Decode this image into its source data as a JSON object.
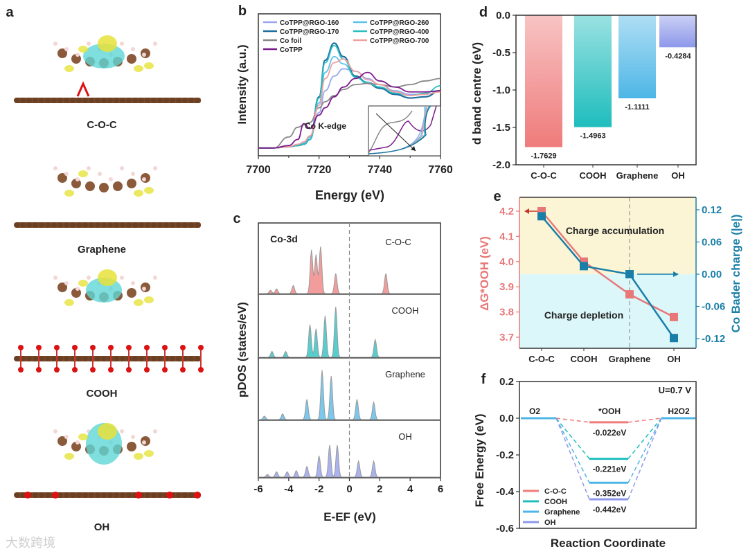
{
  "panel_labels": [
    "a",
    "b",
    "c",
    "d",
    "e",
    "f"
  ],
  "structures": {
    "labels": [
      "C-O-C",
      "Graphene",
      "COOH",
      "OH"
    ]
  },
  "watermark": "大数跨境",
  "colors": {
    "coc": "#ef7b7b",
    "cooh": "#1fbdbd",
    "graphene": "#4db6e6",
    "oh": "#8d98ea",
    "co170": "#1f6f9e",
    "co260": "#5bc3ea",
    "co160": "#9aa6ee",
    "co400": "#2bbfc0",
    "co700": "#f0a0a0",
    "cofoil": "#888888",
    "cotpp": "#7a1a8a",
    "left_axis": "#e87878",
    "right_axis": "#1a7fa8"
  },
  "chart_data": [
    {
      "type": "line",
      "title": "",
      "xlabel": "Energy (eV)",
      "ylabel": "Intensity (a.u.)",
      "xlim": [
        7700,
        7760
      ],
      "xticks": [
        "7700",
        "7720",
        "7740",
        "7760"
      ],
      "annotation": "Co K-edge",
      "legend": "top",
      "x": [
        7700,
        7705,
        7710,
        7713,
        7715,
        7717,
        7720,
        7722,
        7725,
        7728,
        7732,
        7736,
        7740,
        7745,
        7750,
        7755,
        7760
      ],
      "series": [
        {
          "name": "CoTPP@RGO-160",
          "values": [
            0.03,
            0.03,
            0.04,
            0.05,
            0.07,
            0.12,
            0.32,
            0.5,
            0.62,
            0.68,
            0.66,
            0.6,
            0.55,
            0.5,
            0.47,
            0.47,
            0.5
          ]
        },
        {
          "name": "CoTPP@RGO-260",
          "values": [
            0.03,
            0.03,
            0.04,
            0.05,
            0.07,
            0.12,
            0.4,
            0.65,
            0.78,
            0.72,
            0.62,
            0.57,
            0.53,
            0.47,
            0.44,
            0.45,
            0.5
          ]
        },
        {
          "name": "CoTPP@RGO-170",
          "values": [
            0.03,
            0.03,
            0.04,
            0.05,
            0.06,
            0.1,
            0.45,
            0.75,
            0.89,
            0.78,
            0.62,
            0.56,
            0.52,
            0.47,
            0.44,
            0.45,
            0.5
          ]
        },
        {
          "name": "CoTPP@RGO-400",
          "values": [
            0.03,
            0.03,
            0.04,
            0.05,
            0.06,
            0.1,
            0.44,
            0.73,
            0.87,
            0.76,
            0.61,
            0.56,
            0.53,
            0.48,
            0.46,
            0.48,
            0.54
          ]
        },
        {
          "name": "Co foil",
          "values": [
            0.03,
            0.03,
            0.12,
            0.2,
            0.22,
            0.24,
            0.36,
            0.41,
            0.46,
            0.51,
            0.55,
            0.56,
            0.55,
            0.53,
            0.55,
            0.58,
            0.6
          ]
        },
        {
          "name": "CoTPP@RGO-700",
          "values": [
            0.03,
            0.03,
            0.04,
            0.06,
            0.08,
            0.13,
            0.38,
            0.6,
            0.73,
            0.76,
            0.66,
            0.59,
            0.55,
            0.49,
            0.46,
            0.47,
            0.49
          ]
        },
        {
          "name": "CoTPP",
          "values": [
            0.03,
            0.03,
            0.05,
            0.1,
            0.23,
            0.19,
            0.3,
            0.36,
            0.45,
            0.53,
            0.6,
            0.65,
            0.58,
            0.53,
            0.49,
            0.49,
            0.5
          ]
        }
      ]
    },
    {
      "type": "area",
      "title": "",
      "xlabel": "E-EF (eV)",
      "ylabel": "pDOS (states/eV)",
      "xlim": [
        -6,
        6
      ],
      "xticks": [
        "-6",
        "-4",
        "-2",
        "0",
        "2",
        "4",
        "6"
      ],
      "annotation": "Co-3d",
      "fermi_level": 0,
      "series": [
        {
          "name": "C-O-C",
          "peaks_eV": [
            -5.2,
            -4.8,
            -3.7,
            -2.5,
            -2.2,
            -1.9,
            -0.9,
            2.4
          ],
          "peak_heights": [
            0.05,
            0.07,
            0.12,
            0.65,
            0.58,
            0.7,
            0.3,
            0.3
          ]
        },
        {
          "name": "COOH",
          "peaks_eV": [
            -5.1,
            -4.2,
            -2.6,
            -2.2,
            -1.6,
            -0.9,
            1.7
          ],
          "peak_heights": [
            0.1,
            0.1,
            0.55,
            0.48,
            0.7,
            0.85,
            0.3
          ]
        },
        {
          "name": "Graphene",
          "peaks_eV": [
            -5.6,
            -4.4,
            -2.8,
            -1.8,
            -1.2,
            0.5,
            1.6
          ],
          "peak_heights": [
            0.06,
            0.1,
            0.35,
            0.85,
            0.75,
            0.35,
            0.3
          ]
        },
        {
          "name": "OH",
          "peaks_eV": [
            -5.4,
            -4.8,
            -4.1,
            -3.5,
            -2.8,
            -2.0,
            -1.3,
            -0.8,
            0.6,
            1.6
          ],
          "peak_heights": [
            0.05,
            0.1,
            0.1,
            0.12,
            0.2,
            0.4,
            0.6,
            0.6,
            0.3,
            0.3
          ]
        }
      ]
    },
    {
      "type": "bar",
      "title": "",
      "xlabel": "",
      "ylabel": "d band centre (eV)",
      "ylim": [
        -2.0,
        0.0
      ],
      "yticks": [
        "0.0",
        "-0.5",
        "-1.0",
        "-1.5",
        "-2.0"
      ],
      "categories": [
        "C-O-C",
        "COOH",
        "Graphene",
        "OH"
      ],
      "values": [
        -1.7629,
        -1.4963,
        -1.1111,
        -0.4284
      ],
      "data_labels": [
        "-1.7629",
        "-1.4963",
        "-1.1111",
        "-0.4284"
      ]
    },
    {
      "type": "line",
      "title": "",
      "categories": [
        "C-O-C",
        "COOH",
        "Graphene",
        "OH"
      ],
      "ylabel_left": "ΔG*OOH (eV)",
      "ylabel_right": "Co Bader charge (|e|)",
      "ylim_left": [
        3.65,
        4.25
      ],
      "ylim_right": [
        -0.14,
        0.14
      ],
      "yticks_left": [
        "4.2",
        "4.1",
        "4.0",
        "3.9",
        "3.8",
        "3.7"
      ],
      "yticks_right": [
        "0.12",
        "0.06",
        "0.00",
        "-0.06",
        "-0.12"
      ],
      "regions": [
        "Charge accumulation",
        "Charge depletion"
      ],
      "series": [
        {
          "name": "ΔG*OOH",
          "axis": "left",
          "values": [
            4.2,
            4.0,
            3.87,
            3.78
          ]
        },
        {
          "name": "Co Bader charge",
          "axis": "right",
          "values": [
            0.108,
            0.015,
            0.0,
            -0.119
          ]
        }
      ]
    },
    {
      "type": "line",
      "title": "",
      "xlabel": "Reaction Coordinate",
      "ylabel": "Free Energy (eV)",
      "ylim": [
        -0.6,
        0.2
      ],
      "yticks": [
        "0.2",
        "0.0",
        "-0.2",
        "-0.4",
        "-0.6"
      ],
      "annotation": "U=0.7 V",
      "states": [
        "O2",
        "*OOH",
        "H2O2"
      ],
      "legend": "bottom-left",
      "series": [
        {
          "name": "C-O-C",
          "values": [
            0,
            -0.022,
            0
          ],
          "label": "-0.022eV"
        },
        {
          "name": "COOH",
          "values": [
            0,
            -0.221,
            0
          ],
          "label": "-0.221eV"
        },
        {
          "name": "Graphene",
          "values": [
            0,
            -0.352,
            0
          ],
          "label": "-0.352eV"
        },
        {
          "name": "OH",
          "values": [
            0,
            -0.442,
            0
          ],
          "label": "-0.442eV"
        }
      ]
    }
  ]
}
